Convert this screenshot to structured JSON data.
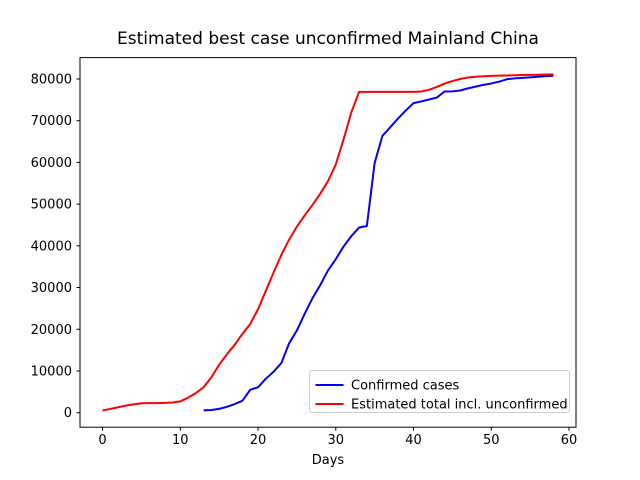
{
  "figure": {
    "title": "Estimated best case unconfirmed Mainland China",
    "xlabel": "Days"
  },
  "chart_data": {
    "type": "line",
    "title": "Estimated best case unconfirmed Mainland China",
    "xlabel": "Days",
    "ylabel": "",
    "background": "#ffffff",
    "grid": false,
    "legend_position": "lower right",
    "xlim": [
      -2.9,
      60.9
    ],
    "ylim": [
      -3480,
      85128
    ],
    "x_ticks": [
      0,
      10,
      20,
      30,
      40,
      50,
      60
    ],
    "y_ticks": [
      0,
      10000,
      20000,
      30000,
      40000,
      50000,
      60000,
      70000,
      80000
    ],
    "series": [
      {
        "name": "Confirmed cases",
        "color": "#0000ff",
        "x": [
          13,
          14,
          15,
          16,
          17,
          18,
          19,
          20,
          21,
          22,
          23,
          24,
          25,
          26,
          27,
          28,
          29,
          30,
          31,
          32,
          33,
          34,
          35,
          36,
          37,
          38,
          39,
          40,
          41,
          42,
          43,
          44,
          45,
          46,
          47,
          48,
          49,
          50,
          51,
          52,
          53,
          54,
          55,
          56,
          57,
          58
        ],
        "y": [
          548,
          643,
          920,
          1406,
          2075,
          2877,
          5509,
          6087,
          8141,
          9802,
          11891,
          16630,
          19716,
          23707,
          27440,
          30587,
          34110,
          36814,
          39829,
          42354,
          44386,
          44759,
          59895,
          66358,
          68413,
          70513,
          72434,
          74211,
          74619,
          75077,
          75550,
          77001,
          77022,
          77241,
          77754,
          78166,
          78600,
          78928,
          79356,
          79932,
          80136,
          80261,
          80386,
          80537,
          80690,
          80770
        ]
      },
      {
        "name": "Estimated total incl. unconfirmed",
        "color": "#ff0000",
        "x": [
          0,
          1,
          2,
          3,
          4,
          5,
          6,
          7,
          8,
          9,
          10,
          11,
          12,
          13,
          14,
          15,
          16,
          17,
          18,
          19,
          20,
          21,
          22,
          23,
          24,
          25,
          26,
          27,
          28,
          29,
          30,
          31,
          32,
          33,
          34,
          35,
          36,
          37,
          38,
          39,
          40,
          41,
          42,
          43,
          44,
          45,
          46,
          47,
          48,
          49,
          50,
          51,
          52,
          53,
          54,
          55,
          56,
          57,
          58
        ],
        "y": [
          550,
          900,
          1300,
          1700,
          2000,
          2250,
          2300,
          2300,
          2350,
          2450,
          2700,
          3600,
          4700,
          6100,
          8500,
          11500,
          14000,
          16300,
          18900,
          21300,
          24800,
          29200,
          33600,
          37800,
          41500,
          44600,
          47300,
          49800,
          52500,
          55500,
          59500,
          65500,
          72000,
          76900,
          76900,
          76900,
          76900,
          76900,
          76900,
          76900,
          76900,
          77000,
          77400,
          78100,
          78900,
          79500,
          80000,
          80350,
          80550,
          80650,
          80750,
          80800,
          80850,
          80900,
          80950,
          81000,
          81030,
          81070,
          81100
        ]
      }
    ]
  }
}
